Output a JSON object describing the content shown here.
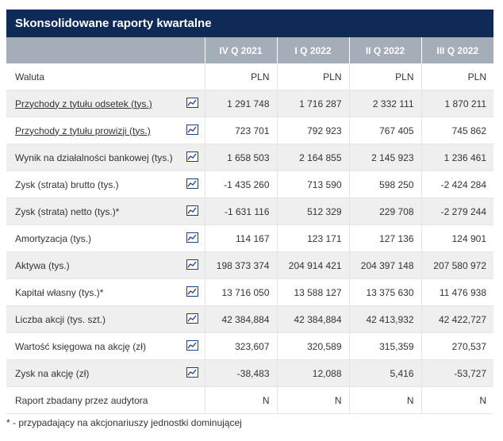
{
  "title": "Skonsolidowane raporty kwartalne",
  "headers": [
    "IV Q 2021",
    "I Q 2022",
    "II Q 2022",
    "III Q 2022"
  ],
  "rows": [
    {
      "label": "Waluta",
      "values": [
        "PLN",
        "PLN",
        "PLN",
        "PLN"
      ]
    },
    {
      "label": "Przychody z tytułu odsetek (tys.)",
      "values": [
        "1 291 748",
        "1 716 287",
        "2 332 111",
        "1 870 211"
      ]
    },
    {
      "label": "Przychody z tytułu prowizji (tys.)",
      "values": [
        "723 701",
        "792 923",
        "767 405",
        "745 862"
      ]
    },
    {
      "label": "Wynik na działalności bankowej (tys.)",
      "values": [
        "1 658 503",
        "2 164 855",
        "2 145 923",
        "1 236 461"
      ]
    },
    {
      "label": "Zysk (strata) brutto (tys.)",
      "values": [
        "-1 435 260",
        "713 590",
        "598 250",
        "-2 424 284"
      ]
    },
    {
      "label": "Zysk (strata) netto (tys.)*",
      "values": [
        "-1 631 116",
        "512 329",
        "229 708",
        "-2 279 244"
      ]
    },
    {
      "label": "Amortyzacja (tys.)",
      "values": [
        "114 167",
        "123 171",
        "127 136",
        "124 901"
      ]
    },
    {
      "label": "Aktywa (tys.)",
      "values": [
        "198 373 374",
        "204 914 421",
        "204 397 148",
        "207 580 972"
      ]
    },
    {
      "label": "Kapitał własny (tys.)*",
      "values": [
        "13 716 050",
        "13 588 127",
        "13 375 630",
        "11 476 938"
      ]
    },
    {
      "label": "Liczba akcji (tys. szt.)",
      "values": [
        "42 384,884",
        "42 384,884",
        "42 413,932",
        "42 422,727"
      ]
    },
    {
      "label": "Wartość księgowa na akcję (zł)",
      "values": [
        "323,607",
        "320,589",
        "315,359",
        "270,537"
      ]
    },
    {
      "label": "Zysk na akcję (zł)",
      "values": [
        "-38,483",
        "12,088",
        "5,416",
        "-53,727"
      ]
    },
    {
      "label": "Raport zbadany przez audytora",
      "values": [
        "N",
        "N",
        "N",
        "N"
      ]
    }
  ],
  "footnote": "* - przypadający na akcjonariuszy jednostki dominującej",
  "colors": {
    "title_bg": "#0f2a56",
    "header_bg": "#a5adb9",
    "row_alt": "#efefef",
    "icon": "#1f3f7a"
  }
}
